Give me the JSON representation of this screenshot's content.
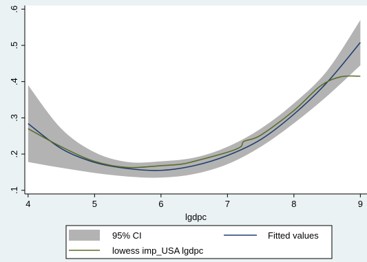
{
  "chart_data": {
    "type": "line",
    "title": "",
    "xlabel": "lgdpc",
    "ylabel": "",
    "xlim": [
      3.95,
      9.1
    ],
    "ylim": [
      0.09,
      0.61
    ],
    "x_ticks": [
      "4",
      "5",
      "6",
      "7",
      "8",
      "9"
    ],
    "y_ticks": [
      ".1",
      ".2",
      ".3",
      ".4",
      ".5",
      ".6"
    ],
    "grid": false,
    "legend_placement": "bottom",
    "series": [
      {
        "name": "95% CI",
        "kind": "band",
        "color": "#b3b3b3",
        "x": [
          4.0,
          4.5,
          5.0,
          5.5,
          6.0,
          6.5,
          7.0,
          7.5,
          8.0,
          8.5,
          9.0
        ],
        "lower": [
          0.178,
          0.162,
          0.148,
          0.138,
          0.135,
          0.145,
          0.172,
          0.22,
          0.285,
          0.36,
          0.445
        ],
        "upper": [
          0.39,
          0.27,
          0.205,
          0.178,
          0.18,
          0.19,
          0.22,
          0.27,
          0.34,
          0.43,
          0.57
        ]
      },
      {
        "name": "Fitted values",
        "kind": "line",
        "color": "#1f3f6e",
        "x": [
          4.0,
          4.5,
          5.0,
          5.5,
          6.0,
          6.5,
          7.0,
          7.5,
          8.0,
          8.5,
          9.0
        ],
        "y": [
          0.284,
          0.215,
          0.177,
          0.16,
          0.155,
          0.168,
          0.196,
          0.24,
          0.31,
          0.398,
          0.508
        ]
      },
      {
        "name": "lowess imp_USA lgdpc",
        "kind": "line",
        "color": "#5a6b28",
        "x": [
          4.0,
          4.5,
          5.0,
          5.5,
          6.0,
          6.3,
          6.5,
          7.0,
          7.2,
          7.25,
          7.5,
          8.0,
          8.4,
          8.7,
          9.0
        ],
        "y": [
          0.27,
          0.22,
          0.18,
          0.163,
          0.168,
          0.172,
          0.18,
          0.205,
          0.22,
          0.235,
          0.252,
          0.32,
          0.388,
          0.413,
          0.415
        ]
      }
    ]
  }
}
